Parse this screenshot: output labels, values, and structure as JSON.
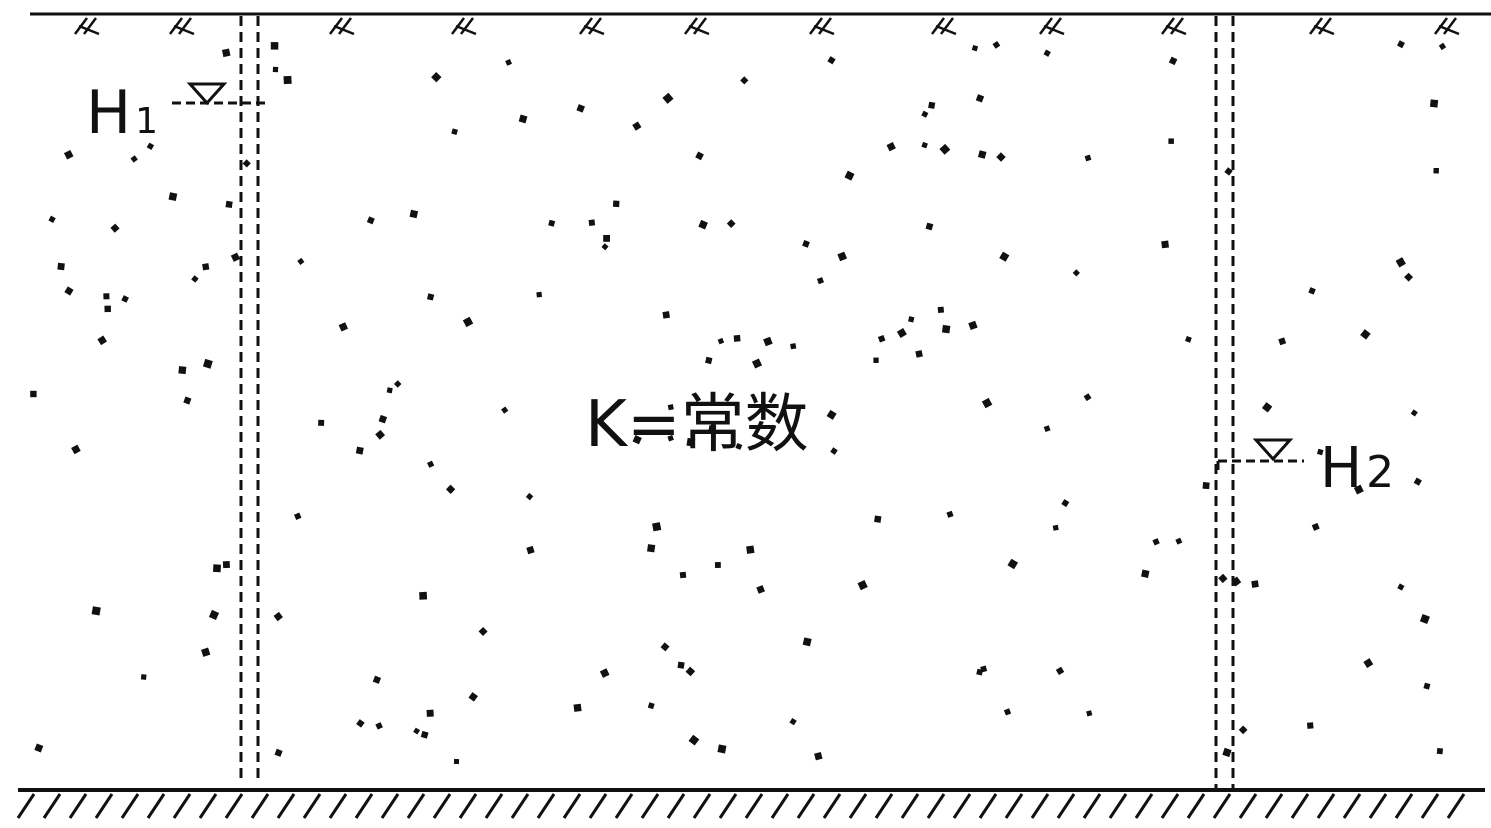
{
  "diagram": {
    "left_head_symbol": "H",
    "left_head_subscript": "1",
    "right_head_symbol": "H",
    "right_head_subscript": "2",
    "conductivity_text": "K=常数"
  }
}
